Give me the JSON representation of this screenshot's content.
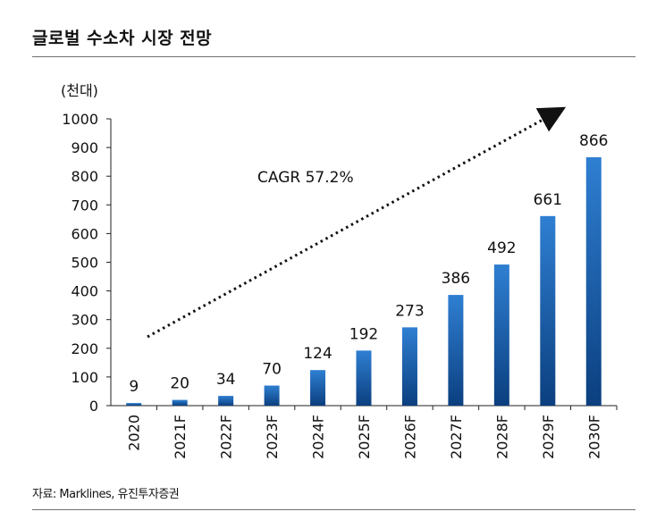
{
  "header": {
    "title": "글로벌 수소차 시장 전망"
  },
  "chart_data": {
    "type": "bar",
    "unit_label": "(천대)",
    "categories": [
      "2020",
      "2021F",
      "2022F",
      "2023F",
      "2024F",
      "2025F",
      "2026F",
      "2027F",
      "2028F",
      "2029F",
      "2030F"
    ],
    "values": [
      9,
      20,
      34,
      70,
      124,
      192,
      273,
      386,
      492,
      661,
      866
    ],
    "ylim": [
      0,
      1000
    ],
    "yticks": [
      0,
      100,
      200,
      300,
      400,
      500,
      600,
      700,
      800,
      900,
      1000
    ],
    "annotation": "CAGR 57.2%",
    "bar_color_top": "#2f7fd2",
    "bar_color_bottom": "#0b3f7f",
    "grid": false,
    "legend": "none"
  },
  "footer": {
    "source": "자료: Marklines, 유진투자증권"
  }
}
